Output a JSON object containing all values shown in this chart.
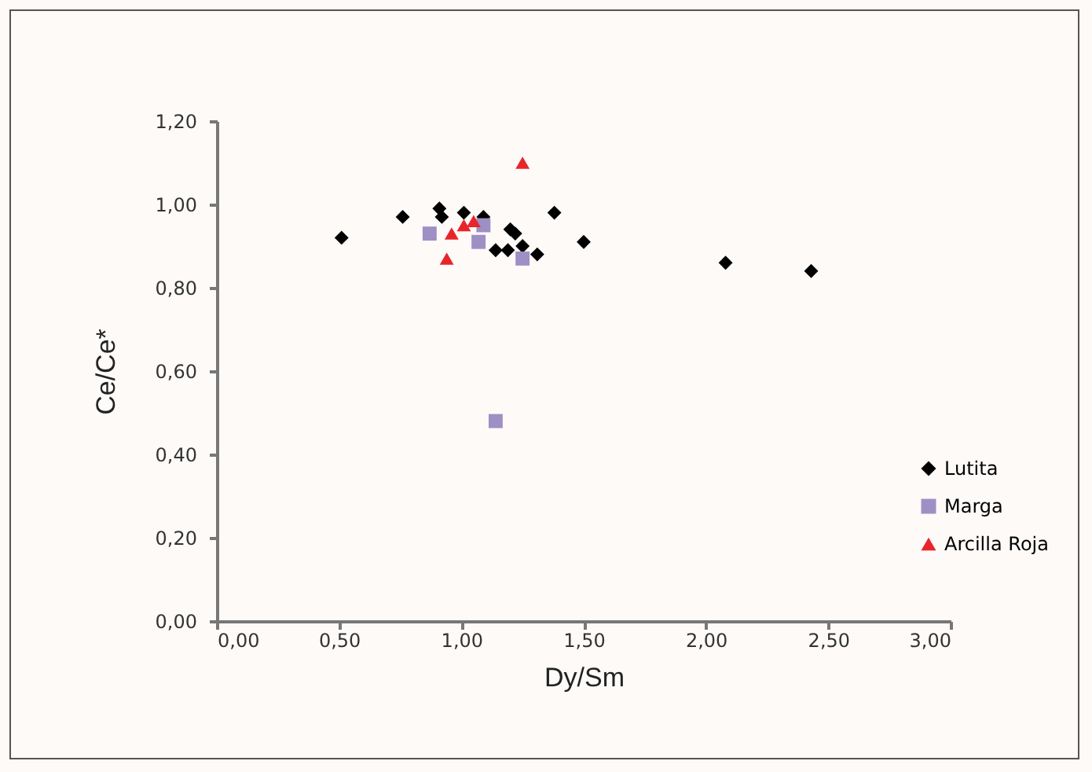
{
  "chart_data": {
    "type": "scatter",
    "xlabel": "Dy/Sm",
    "ylabel": "Ce/Ce*",
    "xlim": [
      0,
      3
    ],
    "ylim": [
      0,
      1.2
    ],
    "xticks": [
      {
        "value": 0,
        "label": "0,00"
      },
      {
        "value": 0.5,
        "label": "0,50"
      },
      {
        "value": 1,
        "label": "1,00"
      },
      {
        "value": 1.5,
        "label": "1,50"
      },
      {
        "value": 2,
        "label": "2,00"
      },
      {
        "value": 2.5,
        "label": "2,50"
      },
      {
        "value": 3,
        "label": "3,00"
      }
    ],
    "yticks": [
      {
        "value": 0,
        "label": "0,00"
      },
      {
        "value": 0.2,
        "label": "0,20"
      },
      {
        "value": 0.4,
        "label": "0,40"
      },
      {
        "value": 0.6,
        "label": "0,60"
      },
      {
        "value": 0.8,
        "label": "0,80"
      },
      {
        "value": 1,
        "label": "1,00"
      },
      {
        "value": 1.2,
        "label": "1,20"
      }
    ],
    "grid": false,
    "legend": "right",
    "series": [
      {
        "name": "Lutita",
        "color": "#000000",
        "marker": "diamond",
        "x": [
          0.51,
          0.76,
          0.91,
          0.92,
          1.01,
          1.09,
          1.2,
          1.22,
          1.14,
          1.19,
          1.25,
          1.31,
          1.38,
          1.5,
          2.08,
          2.43
        ],
        "values": [
          0.92,
          0.97,
          0.99,
          0.97,
          0.98,
          0.97,
          0.94,
          0.93,
          0.89,
          0.89,
          0.9,
          0.88,
          0.98,
          0.91,
          0.86,
          0.84
        ]
      },
      {
        "name": "Marga",
        "color": "#9e8fc4",
        "marker": "square",
        "x": [
          0.87,
          1.07,
          1.09,
          1.25,
          1.14
        ],
        "values": [
          0.93,
          0.91,
          0.95,
          0.87,
          0.48
        ]
      },
      {
        "name": "Arcilla Roja",
        "color": "#e8262a",
        "marker": "triangle",
        "x": [
          1.25,
          0.94,
          0.96,
          1.01,
          1.05
        ],
        "values": [
          1.1,
          0.87,
          0.93,
          0.95,
          0.96
        ]
      }
    ]
  }
}
